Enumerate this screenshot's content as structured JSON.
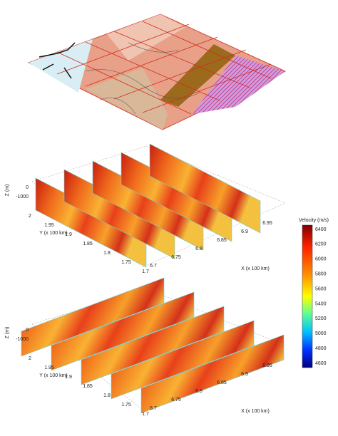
{
  "panels": [
    {
      "z_label": "Z (m)",
      "z_ticks": [
        "0",
        "-1000"
      ],
      "y_label": "Y (x 100 km)",
      "y_ticks": [
        "2",
        "1.95",
        "1.9",
        "1.85",
        "1.8",
        "1.75",
        "1.7"
      ],
      "x_label": "X (x 100 km)",
      "x_ticks": [
        "6.7",
        "6.75",
        "6.8",
        "6.85",
        "6.9",
        "6.95"
      ]
    },
    {
      "z_label": "Z (m)",
      "z_ticks": [
        "0",
        "-1000"
      ],
      "y_label": "Y (x 100 km)",
      "y_ticks": [
        "2",
        "1.95",
        "1.9",
        "1.85",
        "1.8",
        "1.75",
        "1.7"
      ],
      "x_label": "X (x 100 km)",
      "x_ticks": [
        "6.7",
        "6.75",
        "6.8",
        "6.85",
        "6.9",
        "6.95"
      ]
    }
  ],
  "colorbar": {
    "title": "Velocity (m/s)",
    "ticks": [
      "6400",
      "6200",
      "6000",
      "5800",
      "5600",
      "5400",
      "5200",
      "5000",
      "4800",
      "4600"
    ]
  }
}
